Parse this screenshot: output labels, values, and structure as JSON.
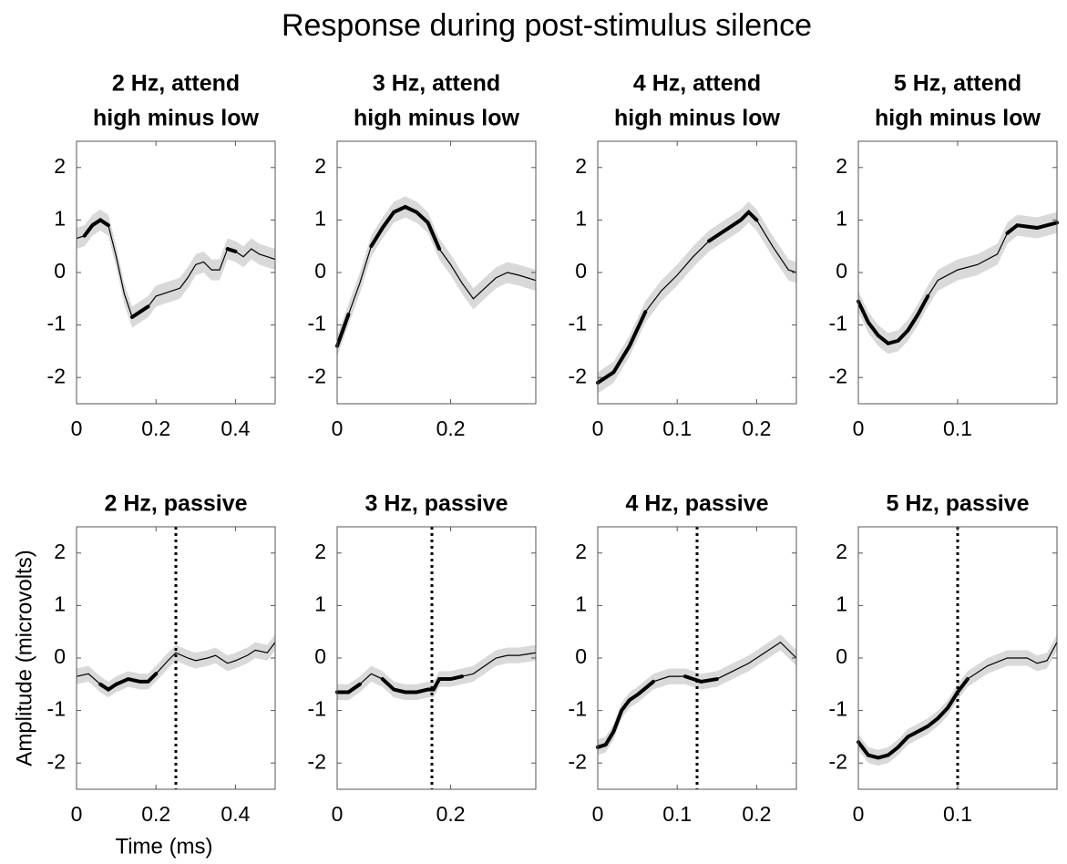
{
  "figure": {
    "title": "Response during post-stimulus silence",
    "xlabel": "Time (ms)",
    "ylabel": "Amplitude (microvolts)"
  },
  "chart_data": [
    {
      "type": "line",
      "title": [
        "2 Hz, attend",
        "high minus low"
      ],
      "xlim": [
        0,
        0.5
      ],
      "xticks": [
        0,
        0.2,
        0.4
      ],
      "ylim": [
        -2.5,
        2.5
      ],
      "yticks": [
        -2,
        -1,
        0,
        1,
        2
      ],
      "color": "#000000",
      "band_color": "#d9d9d9",
      "error": 0.2,
      "x": [
        0,
        0.02,
        0.04,
        0.06,
        0.08,
        0.1,
        0.12,
        0.14,
        0.16,
        0.18,
        0.2,
        0.22,
        0.24,
        0.26,
        0.28,
        0.3,
        0.32,
        0.34,
        0.36,
        0.38,
        0.4,
        0.42,
        0.44,
        0.46,
        0.48,
        0.5
      ],
      "values": [
        0.65,
        0.7,
        0.9,
        1.0,
        0.9,
        0.3,
        -0.4,
        -0.85,
        -0.75,
        -0.65,
        -0.45,
        -0.4,
        -0.35,
        -0.3,
        -0.1,
        0.15,
        0.2,
        0.05,
        0.05,
        0.45,
        0.4,
        0.3,
        0.45,
        0.35,
        0.3,
        0.25
      ],
      "thick_ranges": [
        [
          0.02,
          0.08
        ],
        [
          0.14,
          0.18
        ],
        [
          0.38,
          0.4
        ]
      ]
    },
    {
      "type": "line",
      "title": [
        "3 Hz, attend",
        "high minus low"
      ],
      "xlim": [
        0,
        0.35
      ],
      "xticks": [
        0,
        0.2
      ],
      "ylim": [
        -2.5,
        2.5
      ],
      "yticks": [
        -2,
        -1,
        0,
        1,
        2
      ],
      "color": "#000000",
      "band_color": "#d9d9d9",
      "error": 0.2,
      "x": [
        0,
        0.02,
        0.04,
        0.06,
        0.08,
        0.1,
        0.12,
        0.14,
        0.16,
        0.18,
        0.2,
        0.22,
        0.24,
        0.26,
        0.28,
        0.3,
        0.32,
        0.35
      ],
      "values": [
        -1.4,
        -0.8,
        -0.2,
        0.5,
        0.85,
        1.15,
        1.25,
        1.15,
        0.95,
        0.45,
        0.15,
        -0.2,
        -0.5,
        -0.3,
        -0.1,
        0.0,
        -0.05,
        -0.15
      ],
      "thick_ranges": [
        [
          0,
          0.02
        ],
        [
          0.06,
          0.18
        ]
      ]
    },
    {
      "type": "line",
      "title": [
        "4 Hz, attend",
        "high minus low"
      ],
      "xlim": [
        0,
        0.25
      ],
      "xticks": [
        0,
        0.1,
        0.2
      ],
      "ylim": [
        -2.5,
        2.5
      ],
      "yticks": [
        -2,
        -1,
        0,
        1,
        2
      ],
      "color": "#000000",
      "band_color": "#d9d9d9",
      "error": 0.2,
      "x": [
        0,
        0.02,
        0.04,
        0.06,
        0.08,
        0.1,
        0.12,
        0.14,
        0.16,
        0.18,
        0.19,
        0.2,
        0.22,
        0.24,
        0.25
      ],
      "values": [
        -2.1,
        -1.9,
        -1.4,
        -0.75,
        -0.35,
        -0.05,
        0.3,
        0.6,
        0.8,
        1.0,
        1.15,
        1.0,
        0.5,
        0.05,
        0.0
      ],
      "thick_ranges": [
        [
          0,
          0.06
        ],
        [
          0.14,
          0.21
        ]
      ]
    },
    {
      "type": "line",
      "title": [
        "5 Hz, attend",
        "high minus low"
      ],
      "xlim": [
        0,
        0.2
      ],
      "xticks": [
        0,
        0.1
      ],
      "ylim": [
        -2.5,
        2.5
      ],
      "yticks": [
        -2,
        -1,
        0,
        1,
        2
      ],
      "color": "#000000",
      "band_color": "#d9d9d9",
      "error": 0.2,
      "x": [
        0,
        0.01,
        0.02,
        0.03,
        0.04,
        0.05,
        0.06,
        0.07,
        0.08,
        0.1,
        0.12,
        0.14,
        0.15,
        0.16,
        0.18,
        0.2
      ],
      "values": [
        -0.55,
        -0.95,
        -1.2,
        -1.35,
        -1.3,
        -1.1,
        -0.8,
        -0.45,
        -0.15,
        0.05,
        0.15,
        0.35,
        0.75,
        0.9,
        0.85,
        0.95
      ],
      "thick_ranges": [
        [
          0,
          0.07
        ],
        [
          0.15,
          0.2
        ]
      ]
    },
    {
      "type": "line",
      "title": [
        "2 Hz, passive"
      ],
      "xlim": [
        0,
        0.5
      ],
      "xticks": [
        0,
        0.2,
        0.4
      ],
      "ylim": [
        -2.5,
        2.5
      ],
      "yticks": [
        -2,
        -1,
        0,
        1,
        2
      ],
      "color": "#000000",
      "band_color": "#d9d9d9",
      "error": 0.15,
      "vline": 0.25,
      "x": [
        0,
        0.03,
        0.06,
        0.08,
        0.1,
        0.13,
        0.16,
        0.18,
        0.2,
        0.23,
        0.25,
        0.28,
        0.3,
        0.33,
        0.35,
        0.38,
        0.4,
        0.43,
        0.45,
        0.48,
        0.5
      ],
      "values": [
        -0.35,
        -0.3,
        -0.5,
        -0.6,
        -0.5,
        -0.4,
        -0.45,
        -0.45,
        -0.3,
        -0.05,
        0.1,
        0.0,
        -0.05,
        0.0,
        0.05,
        -0.1,
        -0.05,
        0.05,
        0.15,
        0.1,
        0.3
      ],
      "thick_ranges": [
        [
          0.06,
          0.2
        ]
      ]
    },
    {
      "type": "line",
      "title": [
        "3 Hz, passive"
      ],
      "xlim": [
        0,
        0.35
      ],
      "xticks": [
        0,
        0.2
      ],
      "ylim": [
        -2.5,
        2.5
      ],
      "yticks": [
        -2,
        -1,
        0,
        1,
        2
      ],
      "color": "#000000",
      "band_color": "#d9d9d9",
      "error": 0.15,
      "vline": 0.167,
      "x": [
        0,
        0.02,
        0.04,
        0.06,
        0.08,
        0.1,
        0.12,
        0.14,
        0.16,
        0.17,
        0.18,
        0.2,
        0.22,
        0.24,
        0.26,
        0.28,
        0.3,
        0.32,
        0.35
      ],
      "values": [
        -0.65,
        -0.65,
        -0.5,
        -0.3,
        -0.4,
        -0.6,
        -0.65,
        -0.65,
        -0.6,
        -0.6,
        -0.4,
        -0.4,
        -0.35,
        -0.3,
        -0.15,
        0.0,
        0.05,
        0.05,
        0.1
      ],
      "thick_ranges": [
        [
          0,
          0.04
        ],
        [
          0.08,
          0.22
        ]
      ]
    },
    {
      "type": "line",
      "title": [
        "4 Hz, passive"
      ],
      "xlim": [
        0,
        0.25
      ],
      "xticks": [
        0,
        0.1,
        0.2
      ],
      "ylim": [
        -2.5,
        2.5
      ],
      "yticks": [
        -2,
        -1,
        0,
        1,
        2
      ],
      "color": "#000000",
      "band_color": "#d9d9d9",
      "error": 0.15,
      "vline": 0.125,
      "x": [
        0,
        0.01,
        0.02,
        0.03,
        0.04,
        0.05,
        0.07,
        0.09,
        0.11,
        0.13,
        0.15,
        0.17,
        0.19,
        0.21,
        0.23,
        0.25
      ],
      "values": [
        -1.7,
        -1.65,
        -1.4,
        -1.0,
        -0.8,
        -0.7,
        -0.45,
        -0.35,
        -0.35,
        -0.45,
        -0.4,
        -0.25,
        -0.1,
        0.1,
        0.3,
        0.0
      ],
      "thick_ranges": [
        [
          0,
          0.07
        ],
        [
          0.11,
          0.15
        ]
      ]
    },
    {
      "type": "line",
      "title": [
        "5 Hz, passive"
      ],
      "xlim": [
        0,
        0.2
      ],
      "xticks": [
        0,
        0.1
      ],
      "ylim": [
        -2.5,
        2.5
      ],
      "yticks": [
        -2,
        -1,
        0,
        1,
        2
      ],
      "color": "#000000",
      "band_color": "#d9d9d9",
      "error": 0.15,
      "vline": 0.1,
      "x": [
        0,
        0.01,
        0.02,
        0.03,
        0.04,
        0.05,
        0.06,
        0.07,
        0.08,
        0.09,
        0.1,
        0.11,
        0.13,
        0.15,
        0.17,
        0.18,
        0.19,
        0.2
      ],
      "values": [
        -1.6,
        -1.85,
        -1.9,
        -1.85,
        -1.7,
        -1.5,
        -1.4,
        -1.3,
        -1.15,
        -0.95,
        -0.65,
        -0.4,
        -0.15,
        0.0,
        0.0,
        -0.1,
        -0.05,
        0.3
      ],
      "thick_ranges": [
        [
          0,
          0.11
        ]
      ]
    }
  ]
}
